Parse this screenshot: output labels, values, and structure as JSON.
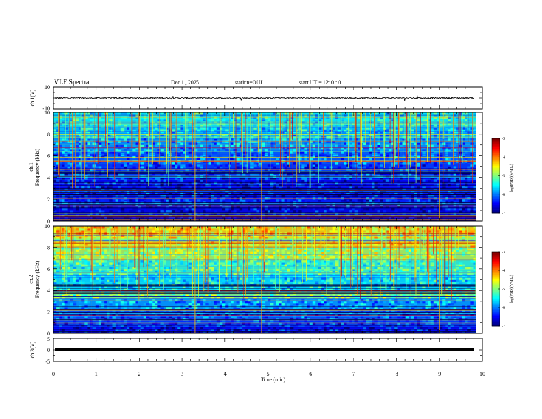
{
  "header": {
    "title": "VLF Spectra",
    "date": "Dec.1 , 2025",
    "station": "station=OUJ",
    "start": "start UT =  12: 0  : 0"
  },
  "chart_data": [
    {
      "type": "line",
      "name": "ch1-waveform",
      "ylabel": "ch.1(V)",
      "ylim": [
        -10,
        10
      ],
      "tick_labels": [
        "10",
        "-10"
      ],
      "xlim": [
        0,
        10
      ],
      "baseline": 0,
      "noise_amplitude": 1.2
    },
    {
      "type": "heatmap",
      "name": "ch1-spectrogram",
      "ylabel": [
        "ch.1",
        "Frequency (kHz)"
      ],
      "ylim": [
        0,
        10
      ],
      "y_tick_labels": [
        "0",
        "2",
        "4",
        "6",
        "8",
        "10"
      ],
      "xlim": [
        0,
        9.85
      ],
      "colorbar": {
        "label": "log(PSD)(V²/Hz)",
        "range": [
          -7,
          -3
        ],
        "tick_labels": [
          "-3",
          "-4",
          "-5",
          "-6",
          "-7"
        ]
      }
    },
    {
      "type": "heatmap",
      "name": "ch2-spectrogram",
      "ylabel": [
        "ch.2",
        "Frequency (kHz)"
      ],
      "ylim": [
        0,
        10
      ],
      "y_tick_labels": [
        "0",
        "2",
        "4",
        "6",
        "8",
        "10"
      ],
      "xlim": [
        0,
        9.85
      ],
      "colorbar": {
        "label": "log(PSD)(V²/Hz)",
        "range": [
          -7,
          -3
        ],
        "tick_labels": [
          "-3",
          "-4",
          "-5",
          "-6",
          "-7"
        ]
      }
    },
    {
      "type": "line",
      "name": "ch3-waveform",
      "ylabel": "ch.3(V)",
      "ylim": [
        -5,
        5
      ],
      "tick_labels": [
        "5",
        "0",
        "-5"
      ],
      "xlim": [
        0,
        10
      ],
      "baseline": 0
    }
  ],
  "x_axis": {
    "label": "Time (min)",
    "range": [
      0,
      10
    ],
    "tick_labels": [
      "0",
      "1",
      "2",
      "3",
      "4",
      "5",
      "6",
      "7",
      "8",
      "9",
      "10"
    ]
  }
}
